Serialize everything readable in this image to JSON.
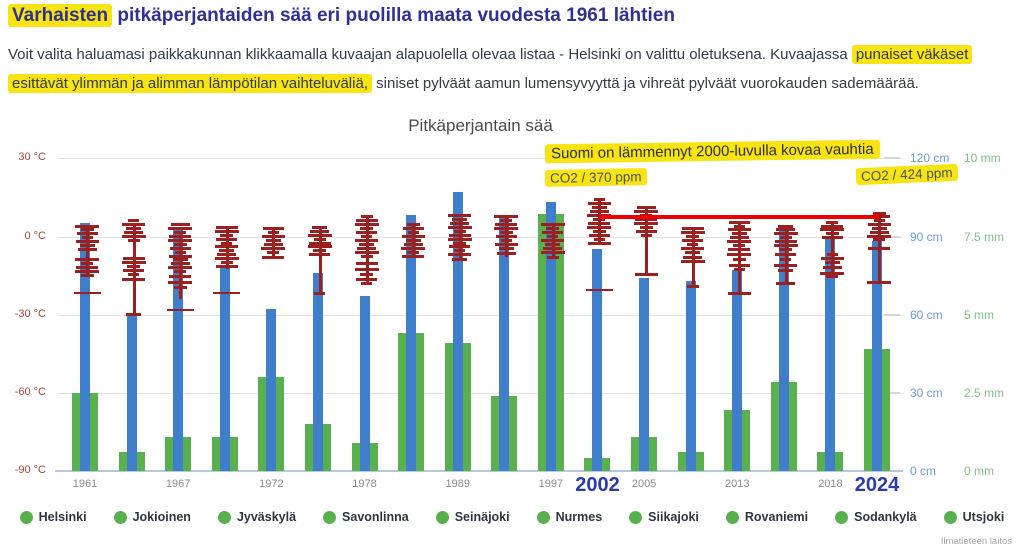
{
  "header": {
    "title_highlight": "Varhaisten",
    "title_rest": " pitkäperjantaiden sää eri puolilla maata vuodesta 1961 lähtien"
  },
  "intro": {
    "p1": "Voit valita haluamasi paikkakunnan klikkaamalla kuvaajan alapuolella olevaa listaa - Helsinki on valittu oletuksena. Kuvaajassa ",
    "hl1": "punaiset väkäset",
    "p2": " ",
    "hl2": "esittävät ylimmän ja alimman lämpötilan vaihteluväliä,",
    "p3": " siniset pylväät aamun lumensyvyyttä ja vihreät pylväät vuorokauden sademäärää."
  },
  "colors": {
    "snow_bar": "#3f7ecb",
    "rain_bar": "#5ab04f",
    "temp_marks": "#9b2020",
    "trend_line": "#ef0000",
    "highlight": "#f7e412",
    "title_blue": "#2e3192",
    "year_emphasis_blue": "#2b3ca8",
    "temp_axis": "#a8433a",
    "snow_axis": "#6b9bd8",
    "rain_axis": "#7fc183"
  },
  "chart_data": {
    "type": "bar",
    "title": "Pitkäperjantain sää",
    "axes": {
      "temperature": {
        "side": "left",
        "unit": "°C",
        "range": [
          -90,
          30
        ],
        "ticks": [
          30,
          0,
          -30,
          -60,
          -90
        ],
        "tick_labels": [
          "30 °C",
          "0 °C",
          "-30 °C",
          "-60 °C",
          "-90 °C"
        ]
      },
      "snow_depth": {
        "side": "right",
        "unit": "cm",
        "range": [
          0,
          120
        ],
        "ticks": [
          120,
          90,
          60,
          30,
          0
        ],
        "tick_labels": [
          "120 cm",
          "90 cm",
          "60 cm",
          "30 cm",
          "0 cm"
        ]
      },
      "rain": {
        "side": "right",
        "unit": "mm",
        "range": [
          0,
          10
        ],
        "ticks": [
          10,
          7.5,
          5,
          2.5,
          0
        ],
        "tick_labels": [
          "10 mm",
          "7.5 mm",
          "5 mm",
          "2.5 mm",
          "0 mm"
        ]
      }
    },
    "groups": [
      {
        "label": "1961",
        "emphasis": false,
        "snow_cm": 95,
        "rain_mm": 2.5,
        "temp_line_c": [
          3.5,
          -15
        ],
        "temp_ticks_c": [
          4,
          2.5,
          1,
          -0.5,
          -2,
          -3.5,
          -5,
          -9,
          -10.5,
          -12,
          -13.5,
          -15
        ],
        "temp_lone_ticks_c": [
          -21.5
        ]
      },
      {
        "label": "",
        "emphasis": false,
        "snow_cm": 60,
        "rain_mm": 0.6,
        "temp_line_c": [
          5,
          -30
        ],
        "temp_ticks_c": [
          6,
          4.5,
          3,
          1.5,
          0,
          -1.5,
          -8.5,
          -10,
          -11.5,
          -13,
          -14.5,
          -16.5,
          -30
        ],
        "temp_lone_ticks_c": []
      },
      {
        "label": "1967",
        "emphasis": false,
        "snow_cm": 93,
        "rain_mm": 1.1,
        "temp_line_c": [
          2,
          -24
        ],
        "temp_ticks_c": [
          4.5,
          3,
          1.5,
          0,
          -1.5,
          -3,
          -4.5,
          -6,
          -7.5,
          -9,
          -10.5,
          -12,
          -13.5,
          -15.5,
          -17.5,
          -19.5
        ],
        "temp_lone_ticks_c": [
          -28
        ]
      },
      {
        "label": "",
        "emphasis": false,
        "snow_cm": 78,
        "rain_mm": 1.1,
        "temp_line_c": [
          3,
          -12.5
        ],
        "temp_ticks_c": [
          3.5,
          2,
          0.5,
          -1,
          -2.5,
          -4,
          -5.5,
          -7,
          -8.5,
          -10,
          -11.5
        ],
        "temp_lone_ticks_c": [
          -21.5
        ]
      },
      {
        "label": "1972",
        "emphasis": false,
        "snow_cm": 62,
        "rain_mm": 3.0,
        "temp_line_c": [
          2.5,
          -8
        ],
        "temp_ticks_c": [
          3,
          1.5,
          0,
          -1.5,
          -3,
          -4.5,
          -6,
          -8
        ],
        "temp_lone_ticks_c": []
      },
      {
        "label": "",
        "emphasis": false,
        "snow_cm": 76,
        "rain_mm": 1.5,
        "temp_line_c": [
          3,
          -22
        ],
        "temp_ticks_c": [
          3.5,
          2,
          0.5,
          -1,
          -2.5,
          -4,
          -5.5,
          -7,
          -22
        ],
        "temp_lone_ticks_c": []
      },
      {
        "label": "1978",
        "emphasis": false,
        "snow_cm": 67,
        "rain_mm": 0.9,
        "temp_line_c": [
          7,
          -18
        ],
        "temp_ticks_c": [
          7.5,
          6,
          4.5,
          3,
          1.5,
          0,
          -1.5,
          -3,
          -4.5,
          -6,
          -7.5,
          -10.5,
          -12.5,
          -14.5,
          -16.5,
          -18
        ],
        "temp_lone_ticks_c": []
      },
      {
        "label": "",
        "emphasis": false,
        "snow_cm": 98,
        "rain_mm": 4.4,
        "temp_line_c": [
          4,
          -8
        ],
        "temp_ticks_c": [
          4.5,
          3,
          1.5,
          0,
          -1.5,
          -3,
          -4.5,
          -6,
          -7.5
        ],
        "temp_lone_ticks_c": []
      },
      {
        "label": "1989",
        "emphasis": false,
        "snow_cm": 107,
        "rain_mm": 4.1,
        "temp_line_c": [
          7,
          -9.5
        ],
        "temp_ticks_c": [
          8,
          6.5,
          5,
          3.5,
          2,
          0.5,
          -1,
          -2.5,
          -4,
          -5.5,
          -7,
          -9
        ],
        "temp_lone_ticks_c": []
      },
      {
        "label": "",
        "emphasis": false,
        "snow_cm": 98,
        "rain_mm": 2.4,
        "temp_line_c": [
          7,
          -8
        ],
        "temp_ticks_c": [
          7.5,
          6,
          4.5,
          3,
          1.5,
          0,
          -1.5,
          -3,
          -4.5,
          -6.5
        ],
        "temp_lone_ticks_c": []
      },
      {
        "label": "1997",
        "emphasis": false,
        "snow_cm": 103,
        "rain_mm": 8.2,
        "temp_line_c": [
          4,
          -8.5
        ],
        "temp_ticks_c": [
          4.5,
          3,
          1.5,
          0,
          -1.5,
          -3,
          -4.5,
          -6,
          -8
        ],
        "temp_lone_ticks_c": []
      },
      {
        "label": "2002",
        "emphasis": true,
        "snow_cm": 85,
        "rain_mm": 0.4,
        "temp_line_c": [
          13.5,
          -3
        ],
        "temp_ticks_c": [
          14,
          12.5,
          11,
          9.5,
          8,
          6.5,
          5,
          3.5,
          2,
          0.5,
          -1,
          -2.5
        ],
        "temp_lone_ticks_c": [
          -20.5
        ]
      },
      {
        "label": "2005",
        "emphasis": false,
        "snow_cm": 74,
        "rain_mm": 1.1,
        "temp_line_c": [
          10.5,
          -14.5
        ],
        "temp_ticks_c": [
          11,
          9.5,
          8,
          6.5,
          5,
          3.5,
          2,
          0.5,
          -14.5
        ],
        "temp_lone_ticks_c": []
      },
      {
        "label": "",
        "emphasis": false,
        "snow_cm": 73,
        "rain_mm": 0.6,
        "temp_line_c": [
          2.5,
          -19
        ],
        "temp_ticks_c": [
          3,
          1.5,
          0,
          -1.5,
          -3,
          -4.5,
          -6,
          -8,
          -9.5,
          -19
        ],
        "temp_lone_ticks_c": []
      },
      {
        "label": "2013",
        "emphasis": false,
        "snow_cm": 77,
        "rain_mm": 1.95,
        "temp_line_c": [
          5,
          -22
        ],
        "temp_ticks_c": [
          5.5,
          4,
          2.5,
          1,
          -0.5,
          -2,
          -3.5,
          -5,
          -7,
          -9,
          -11,
          -12.5,
          -22
        ],
        "temp_lone_ticks_c": []
      },
      {
        "label": "",
        "emphasis": false,
        "snow_cm": 94,
        "rain_mm": 2.85,
        "temp_line_c": [
          3.5,
          -18
        ],
        "temp_ticks_c": [
          4,
          2.5,
          1,
          -0.5,
          -2,
          -3.5,
          -5,
          -7,
          -9,
          -11,
          -13,
          -18
        ],
        "temp_lone_ticks_c": []
      },
      {
        "label": "2018",
        "emphasis": false,
        "snow_cm": 90,
        "rain_mm": 0.6,
        "temp_line_c": [
          5,
          -15.5
        ],
        "temp_ticks_c": [
          5.5,
          4,
          2.5,
          1,
          -0.5,
          -7,
          -8.5,
          -10,
          -12,
          -14,
          -15.5
        ],
        "temp_lone_ticks_c": []
      },
      {
        "label": "2024",
        "emphasis": true,
        "snow_cm": 88,
        "rain_mm": 3.9,
        "temp_line_c": [
          8.5,
          -17.5
        ],
        "temp_ticks_c": [
          9,
          7.5,
          6,
          4.5,
          3,
          1.5,
          0,
          -1,
          -4.5,
          -17.5
        ],
        "temp_lone_ticks_c": []
      }
    ],
    "trend_line": {
      "temp_c": 7.3,
      "from_group": 11,
      "to_group": 17
    },
    "annotations": {
      "warming_note": "Suomi on lämmennyt 2000-luvulla kovaa vauhtia",
      "co2_2002": "CO2 / 370 ppm",
      "co2_2024": "CO2 / 424 ppm"
    }
  },
  "legend": {
    "stations": [
      "Helsinki",
      "Jokioinen",
      "Jyväskylä",
      "Savonlinna",
      "Seinäjoki",
      "Nurmes",
      "Siikajoki",
      "Rovaniemi",
      "Sodankylä",
      "Utsjoki"
    ]
  },
  "footer": {
    "watermark": "Ilmatieteen laitos"
  }
}
